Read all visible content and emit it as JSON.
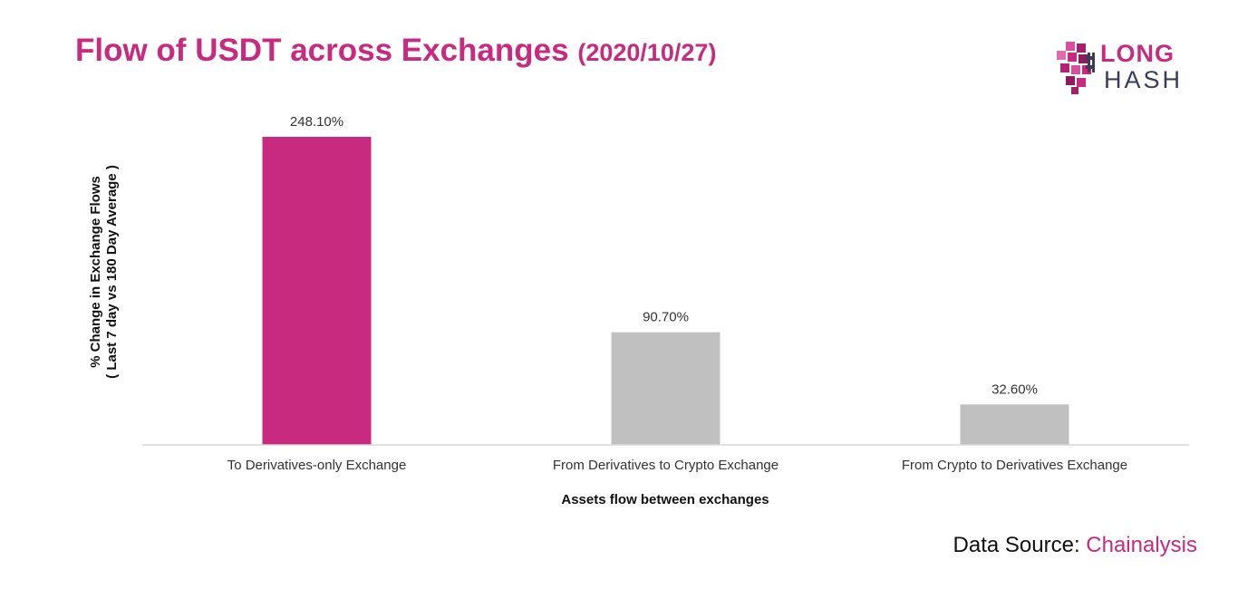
{
  "header": {
    "title": "Flow of USDT across Exchanges",
    "date": "(2020/10/27)"
  },
  "logo": {
    "line1": "LONG",
    "line2": "HASH",
    "brand_color": "#c72a7f",
    "icon": "pixel-hash-icon"
  },
  "footer": {
    "source_prefix": "Data Source: ",
    "source_name": "Chainalysis"
  },
  "chart_data": {
    "type": "bar",
    "title": "Flow of USDT across Exchanges (2020/10/27)",
    "xlabel": "Assets flow between exchanges",
    "ylabel_line1": "% Change in Exchange Flows",
    "ylabel_line2": "( Last 7 day vs 180 Day Average )",
    "categories": [
      "To Derivatives-only Exchange",
      "From Derivatives to Crypto Exchange",
      "From Crypto to Derivatives Exchange"
    ],
    "values": [
      248.1,
      90.7,
      32.6
    ],
    "data_labels": [
      "248.10%",
      "90.70%",
      "32.60%"
    ],
    "colors": [
      "#c72a7f",
      "#c0c0c0",
      "#c0c0c0"
    ],
    "ylim": [
      0,
      248.1
    ],
    "grid": false,
    "legend": "none"
  }
}
